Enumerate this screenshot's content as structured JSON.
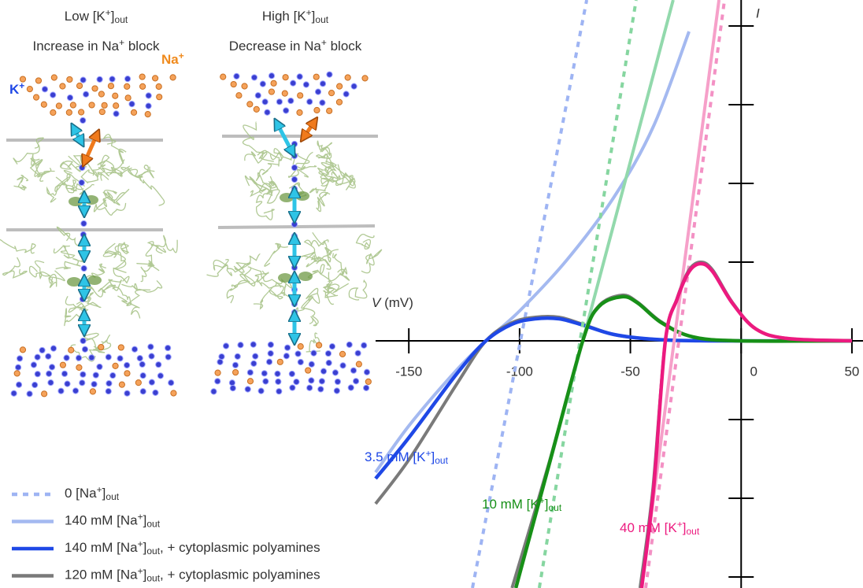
{
  "schematic": {
    "panels": [
      {
        "title": [
          {
            "text": "Low [K"
          },
          {
            "sup": "+"
          },
          {
            "text": "]"
          },
          {
            "sub": "out"
          }
        ],
        "subtitle": [
          {
            "text": "Increase in Na"
          },
          {
            "sup": "+"
          },
          {
            "text": " block"
          }
        ]
      },
      {
        "title": [
          {
            "text": "High [K"
          },
          {
            "sup": "+"
          },
          {
            "text": "]"
          },
          {
            "sub": "out"
          }
        ],
        "subtitle": [
          {
            "text": "Decrease in Na"
          },
          {
            "sup": "+"
          },
          {
            "text": " block"
          }
        ]
      }
    ],
    "ion_labels": [
      {
        "label": [
          {
            "text": "K"
          },
          {
            "sup": "+"
          }
        ],
        "color": "#1f48e6"
      },
      {
        "label": [
          {
            "text": "Na"
          },
          {
            "sup": "+"
          }
        ],
        "color": "#f08a1c"
      }
    ]
  },
  "chart_data": {
    "type": "line",
    "x_label": [
      {
        "em": "V"
      },
      {
        "text": " (mV)"
      }
    ],
    "y_label": "I",
    "xlim": [
      -165,
      55
    ],
    "xticks": [
      -150,
      -100,
      -50,
      0,
      50
    ],
    "ylim": [
      -3.14,
      4.33
    ],
    "yticks": [
      -3,
      -2,
      -1,
      1,
      2,
      3,
      4
    ],
    "legend": [
      {
        "label": [
          {
            "text": "0 [Na"
          },
          {
            "sup": "+"
          },
          {
            "text": "]"
          },
          {
            "sub": "out"
          }
        ],
        "color": "#9eb4f3",
        "style": "dashed"
      },
      {
        "label": [
          {
            "text": "140 mM [Na"
          },
          {
            "sup": "+"
          },
          {
            "text": "]"
          },
          {
            "sub": "out"
          }
        ],
        "color": "#a4b9f0",
        "style": "solid"
      },
      {
        "label": [
          {
            "text": "140 mM [Na"
          },
          {
            "sup": "+"
          },
          {
            "text": "]"
          },
          {
            "sub": "out"
          },
          {
            "text": ", + cytoplasmic polyamines"
          }
        ],
        "color": "#1f48e6",
        "style": "solid"
      },
      {
        "label": [
          {
            "text": "120 mM [Na"
          },
          {
            "sup": "+"
          },
          {
            "text": "]"
          },
          {
            "sub": "out"
          },
          {
            "text": ", + cytoplasmic polyamines"
          }
        ],
        "color": "#7a7a7a",
        "style": "solid"
      }
    ],
    "series": [
      {
        "name": [
          {
            "text": "3.5 mM [K"
          },
          {
            "sup": "+"
          },
          {
            "text": "]"
          },
          {
            "sub": "out"
          }
        ],
        "color": "#1f48e6",
        "curves": [
          {
            "style": "dashed",
            "color": "#9eb4f3",
            "x": [
              -121.3,
              -69.7
            ],
            "values": [
              -3.14,
              4.33
            ]
          },
          {
            "style": "solid",
            "color": "#a4b9f0",
            "x": [
              -165,
              -149.7,
              -128.4,
              -115.2,
              -100,
              -78.6,
              -57.3,
              -39.5,
              -23.5
            ],
            "values": [
              -1.67,
              -1.07,
              -0.37,
              0,
              0.38,
              1.03,
              1.83,
              2.73,
              3.93
            ]
          },
          {
            "style": "solid",
            "color": "#1f48e6",
            "x": [
              -165,
              -149.7,
              -128.4,
              -115.2,
              -103.5,
              -92.9,
              -82.2,
              -71.5,
              -57.3,
              -39.5,
              -14.7,
              50
            ],
            "values": [
              -1.75,
              -1.22,
              -0.42,
              0,
              0.21,
              0.28,
              0.28,
              0.2,
              0.08,
              0.02,
              0,
              0
            ]
          },
          {
            "style": "solid",
            "color": "#7a7a7a",
            "x": [
              -165,
              -149.7,
              -128.4,
              -115.2,
              -103.5,
              -92.9,
              -82.2,
              -71.5,
              -57.3,
              -39.5,
              -14.7,
              50
            ],
            "values": [
              -2.07,
              -1.5,
              -0.55,
              0,
              0.23,
              0.3,
              0.3,
              0.21,
              0.08,
              0.02,
              0,
              0
            ]
          }
        ]
      },
      {
        "name": [
          {
            "text": "10 mM  [K"
          },
          {
            "sup": "+"
          },
          {
            "text": "]"
          },
          {
            "sub": "out"
          }
        ],
        "color": "#179017",
        "curves": [
          {
            "style": "dashed",
            "color": "#86d6a0",
            "x": [
              -91.1,
              -47.4
            ],
            "values": [
              -3.14,
              4.33
            ]
          },
          {
            "style": "solid",
            "color": "#92d9ac",
            "x": [
              -101.7,
              -71.5,
              -30.7
            ],
            "values": [
              -3.14,
              0,
              4.33
            ]
          },
          {
            "style": "solid",
            "color": "#179017",
            "x": [
              -101.7,
              -85.7,
              -71.5,
              -64.4,
              -53.8,
              -46.7,
              -36,
              -21.8,
              -0.4,
              50
            ],
            "values": [
              -3.14,
              -1.47,
              0,
              0.43,
              0.56,
              0.48,
              0.23,
              0.05,
              0,
              0
            ]
          },
          {
            "style": "solid",
            "color": "#7a7a7a",
            "x": [
              -103.4,
              -86.7,
              -71.5,
              -64.4,
              -53.8,
              -46.7,
              -36,
              -21.8,
              -0.4,
              50
            ],
            "values": [
              -3.14,
              -1.55,
              0,
              0.44,
              0.58,
              0.49,
              0.24,
              0.05,
              0,
              0
            ]
          }
        ]
      },
      {
        "name": [
          {
            "text": "40 mM [K"
          },
          {
            "sup": "+"
          },
          {
            "text": "]"
          },
          {
            "sub": "out"
          }
        ],
        "color": "#ec1a7f",
        "curves": [
          {
            "style": "dashed",
            "color": "#f391c4",
            "x": [
              -43.1,
              -7.5
            ],
            "values": [
              -3.14,
              4.33
            ]
          },
          {
            "style": "solid",
            "color": "#f6a0c9",
            "x": [
              -44.9,
              -10
            ],
            "values": [
              -3.14,
              4.33
            ]
          },
          {
            "style": "solid",
            "color": "#ec1a7f",
            "x": [
              -44.9,
              -39.5,
              -34.2,
              -28.9,
              -23.5,
              -18.2,
              -12.9,
              -4,
              6.7,
              20.9,
              50
            ],
            "values": [
              -3.14,
              -1.87,
              0,
              0.53,
              0.88,
              0.98,
              0.88,
              0.48,
              0.15,
              0.03,
              0
            ]
          },
          {
            "style": "solid",
            "color": "#7a7a7a",
            "x": [
              -45.6,
              -39.9,
              -34.2,
              -28.9,
              -23.5,
              -18.2,
              -12.9,
              -4,
              6.7,
              20.9,
              50
            ],
            "values": [
              -3.14,
              -1.9,
              0,
              0.54,
              0.9,
              1.0,
              0.9,
              0.49,
              0.15,
              0.03,
              0
            ]
          }
        ]
      }
    ]
  }
}
